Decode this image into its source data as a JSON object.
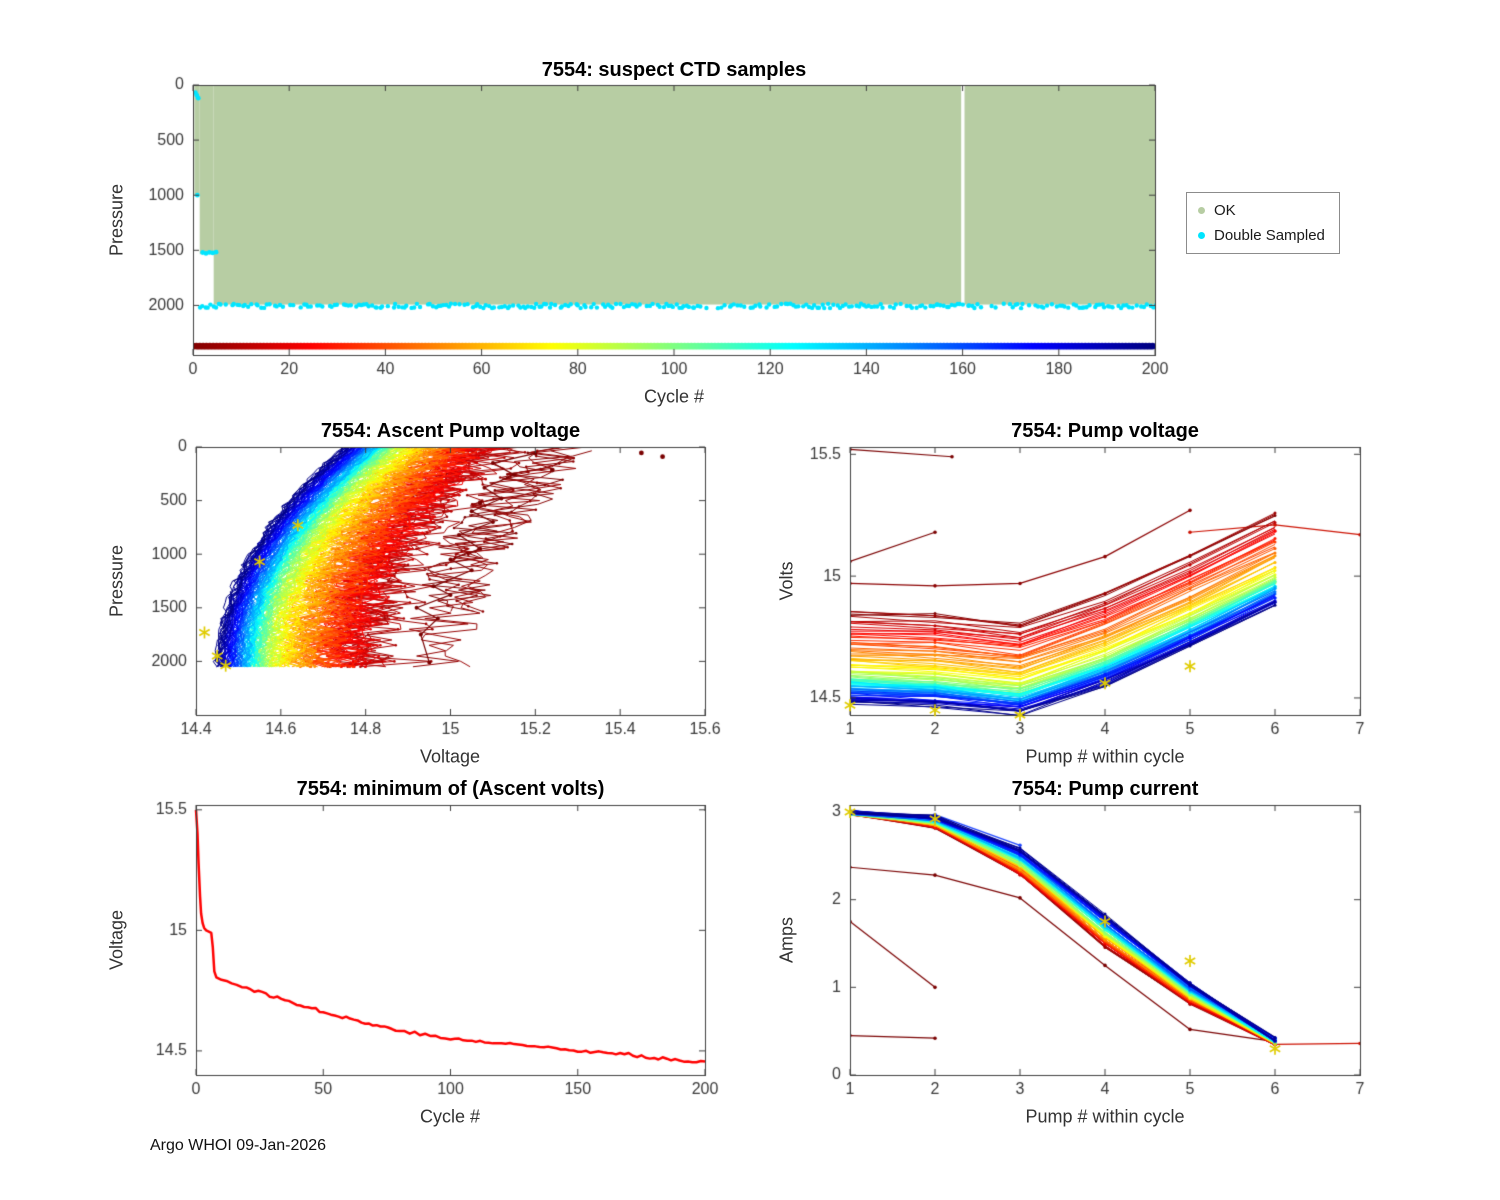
{
  "figure": {
    "footer": "Argo WHOI 09-Jan-2026",
    "background": "#ffffff"
  },
  "legend": {
    "items": [
      {
        "label": "OK",
        "color": "#b7cda3"
      },
      {
        "label": "Double Sampled",
        "color": "#00e5ff"
      }
    ]
  },
  "chart_data": [
    {
      "id": "suspect-ctd-samples",
      "type": "scatter",
      "title": "7554: suspect CTD samples",
      "xlabel": "Cycle #",
      "ylabel": "Pressure",
      "xlim": [
        0,
        200
      ],
      "ylim": [
        0,
        2450
      ],
      "y_reversed": true,
      "xticks": [
        0,
        20,
        40,
        60,
        80,
        100,
        120,
        140,
        160,
        180,
        200
      ],
      "yticks": [
        0,
        500,
        1000,
        1500,
        2000
      ],
      "legend_position": "outside-right",
      "ok_color": "#b7cda3",
      "double_sampled_color": "#00e5ff",
      "ok_columns": [
        {
          "cycle_start": 0.3,
          "cycle_end": 1.4,
          "pressure_max": 1005
        },
        {
          "cycle_start": 1.4,
          "cycle_end": 4.3,
          "pressure_max": 1535
        },
        {
          "cycle_start": 4.3,
          "cycle_end": 200.5,
          "pressure_max": 1992
        }
      ],
      "missing_cycle_gap": [
        159.7,
        160.4
      ],
      "double_sampled_band": {
        "pressure_center": 2005,
        "pressure_jitter": 20,
        "cycle_start": 1.5,
        "cycle_end": 200.5,
        "density": 0.78
      },
      "double_sampled_points": [
        [
          0.5,
          70
        ],
        [
          0.8,
          95
        ],
        [
          1.1,
          120
        ],
        [
          0.9,
          1000
        ],
        [
          2.0,
          1520
        ],
        [
          2.7,
          1528
        ],
        [
          3.4,
          1519
        ],
        [
          4.1,
          1524
        ],
        [
          4.8,
          1517
        ]
      ],
      "cycle_color_row": {
        "pressure": 2370,
        "colormap": "jet-reversed-by-cycle",
        "cycle_start": 0,
        "cycle_end": 200
      }
    },
    {
      "id": "ascent-pump-voltage",
      "type": "line",
      "title": "7554: Ascent Pump voltage",
      "xlabel": "Voltage",
      "ylabel": "Pressure",
      "xlim": [
        14.4,
        15.6
      ],
      "ylim": [
        0,
        2500
      ],
      "y_reversed": true,
      "xticks": [
        14.4,
        14.6,
        14.8,
        15,
        15.2,
        15.4,
        15.6
      ],
      "yticks": [
        0,
        500,
        1000,
        1500,
        2000
      ],
      "colormap": "jet-reversed-by-cycle-1-to-200",
      "profile_model": {
        "cycle_step": 1,
        "bottom_voltage_source": "min-ascent-volts-series",
        "bottom_voltage_cap": 14.97,
        "surface_offset": 0.3,
        "max_pressure": 2050,
        "shape_exponent": 2,
        "noise_early": 0.1,
        "noise_late": 0.012
      },
      "outlier_profile": [
        [
          15.2,
          60
        ],
        [
          15.1,
          150
        ],
        [
          15.15,
          260
        ],
        [
          15.08,
          380
        ],
        [
          15.12,
          480
        ],
        [
          15.05,
          600
        ],
        [
          15.1,
          700
        ],
        [
          15.02,
          820
        ],
        [
          15.07,
          950
        ],
        [
          15.0,
          1050
        ],
        [
          15.05,
          1150
        ],
        [
          14.96,
          1300
        ],
        [
          15.0,
          1380
        ],
        [
          14.92,
          1500
        ],
        [
          14.97,
          1600
        ],
        [
          14.93,
          1750
        ],
        [
          14.95,
          2010
        ]
      ],
      "outlier_points": [
        [
          15.5,
          90
        ],
        [
          15.45,
          55
        ],
        [
          15.24,
          215
        ],
        [
          15.07,
          520
        ]
      ],
      "star_markers": [
        [
          14.42,
          1730
        ],
        [
          14.45,
          1950
        ],
        [
          14.47,
          2040
        ],
        [
          14.55,
          1070
        ],
        [
          14.64,
          730
        ]
      ]
    },
    {
      "id": "pump-voltage",
      "type": "line",
      "title": "7554: Pump voltage",
      "xlabel": "Pump # within cycle",
      "ylabel": "Volts",
      "xlim": [
        1,
        7
      ],
      "ylim": [
        14.43,
        15.53
      ],
      "xticks": [
        1,
        2,
        3,
        4,
        5,
        6,
        7
      ],
      "yticks": [
        14.5,
        15,
        15.5
      ],
      "series_model": {
        "cycle_step": 2,
        "bottom_voltage_source": "min-ascent-volts-series",
        "bottom_voltage_cap": 14.82,
        "pump_offsets": [
          0.03,
          0.015,
          -0.02,
          0.1,
          0.26,
          0.43
        ],
        "noise": 0.012
      },
      "outlier_series": [
        {
          "color": "#7a0000",
          "points": [
            [
              1,
              15.52
            ],
            [
              2.2,
              15.49
            ]
          ]
        },
        {
          "color": "#7a0000",
          "points": [
            [
              1,
              15.06
            ],
            [
              2,
              15.18
            ]
          ]
        },
        {
          "color": "#8b0000",
          "points": [
            [
              1,
              14.97
            ],
            [
              2,
              14.96
            ],
            [
              3,
              14.97
            ],
            [
              4,
              15.08
            ],
            [
              5,
              15.27
            ]
          ]
        },
        {
          "color": "#cc1100",
          "points": [
            [
              5,
              15.18
            ],
            [
              6,
              15.21
            ],
            [
              7,
              15.17
            ]
          ]
        }
      ],
      "star_markers": [
        [
          1,
          14.47
        ],
        [
          2,
          14.45
        ],
        [
          3,
          14.43
        ],
        [
          4,
          14.56
        ],
        [
          5,
          14.63
        ]
      ]
    },
    {
      "id": "min-ascent-volts",
      "type": "line",
      "title": "7554: minimum of (Ascent volts)",
      "xlabel": "Cycle #",
      "ylabel": "Voltage",
      "xlim": [
        0,
        200
      ],
      "ylim": [
        14.4,
        15.52
      ],
      "xticks": [
        0,
        50,
        100,
        150,
        200
      ],
      "yticks": [
        14.5,
        15,
        15.5
      ],
      "line_color": "#ff0000",
      "line_width": 2.5,
      "series": [
        [
          0,
          15.5
        ],
        [
          0.6,
          15.4
        ],
        [
          1,
          15.28
        ],
        [
          1.6,
          15.14
        ],
        [
          2,
          15.07
        ],
        [
          2.6,
          15.03
        ],
        [
          3.2,
          15.01
        ],
        [
          4,
          15.0
        ],
        [
          5,
          14.995
        ],
        [
          6,
          14.99
        ],
        [
          6.6,
          14.93
        ],
        [
          7.2,
          14.83
        ],
        [
          8,
          14.805
        ],
        [
          9,
          14.8
        ],
        [
          10,
          14.795
        ],
        [
          12,
          14.79
        ],
        [
          14,
          14.78
        ],
        [
          16,
          14.775
        ],
        [
          18,
          14.77
        ],
        [
          20,
          14.76
        ],
        [
          23,
          14.75
        ],
        [
          26,
          14.74
        ],
        [
          29,
          14.73
        ],
        [
          32,
          14.72
        ],
        [
          35,
          14.71
        ],
        [
          38,
          14.7
        ],
        [
          41,
          14.693
        ],
        [
          44,
          14.682
        ],
        [
          47,
          14.672
        ],
        [
          50,
          14.663
        ],
        [
          53,
          14.655
        ],
        [
          56,
          14.646
        ],
        [
          59,
          14.638
        ],
        [
          62,
          14.63
        ],
        [
          65,
          14.62
        ],
        [
          68,
          14.612
        ],
        [
          71,
          14.604
        ],
        [
          74,
          14.6
        ],
        [
          77,
          14.592
        ],
        [
          80,
          14.585
        ],
        [
          84,
          14.578
        ],
        [
          88,
          14.57
        ],
        [
          92,
          14.562
        ],
        [
          96,
          14.556
        ],
        [
          100,
          14.55
        ],
        [
          105,
          14.545
        ],
        [
          110,
          14.54
        ],
        [
          115,
          14.535
        ],
        [
          120,
          14.53
        ],
        [
          125,
          14.528
        ],
        [
          130,
          14.522
        ],
        [
          135,
          14.515
        ],
        [
          140,
          14.52
        ],
        [
          145,
          14.508
        ],
        [
          150,
          14.5
        ],
        [
          155,
          14.498
        ],
        [
          160,
          14.492
        ],
        [
          165,
          14.488
        ],
        [
          170,
          14.485
        ],
        [
          175,
          14.478
        ],
        [
          180,
          14.472
        ],
        [
          185,
          14.468
        ],
        [
          190,
          14.462
        ],
        [
          195,
          14.458
        ],
        [
          200,
          14.452
        ]
      ]
    },
    {
      "id": "pump-current",
      "type": "line",
      "title": "7554: Pump current",
      "xlabel": "Pump # within cycle",
      "ylabel": "Amps",
      "xlim": [
        1,
        7
      ],
      "ylim": [
        0,
        3.08
      ],
      "xticks": [
        1,
        2,
        3,
        4,
        5,
        6,
        7
      ],
      "yticks": [
        0,
        1,
        2,
        3
      ],
      "series_model": {
        "cycle_step": 2,
        "pump_base": [
          2.98,
          2.87,
          2.4,
          1.62,
          0.9,
          0.38
        ],
        "late_adjust": [
          0.02,
          0.08,
          0.18,
          0.2,
          0.15,
          0.03
        ],
        "early_adjust": [
          0.0,
          0.04,
          0.12,
          0.15,
          0.08,
          0.02
        ],
        "noise": 0.025
      },
      "outlier_series": [
        {
          "color": "#7a0000",
          "points": [
            [
              1,
              2.37
            ],
            [
              2,
              2.28
            ],
            [
              3,
              2.02
            ],
            [
              4,
              1.25
            ],
            [
              5,
              0.52
            ],
            [
              6,
              0.38
            ]
          ]
        },
        {
          "color": "#7a0000",
          "points": [
            [
              1,
              1.75
            ],
            [
              2,
              1.0
            ]
          ]
        },
        {
          "color": "#7a0000",
          "points": [
            [
              1,
              0.45
            ],
            [
              2,
              0.42
            ]
          ]
        },
        {
          "color": "#cc1100",
          "points": [
            [
              6,
              0.35
            ],
            [
              7,
              0.36
            ]
          ]
        },
        {
          "color": "#1f46ff",
          "points": [
            [
              2,
              2.97
            ],
            [
              3,
              2.62
            ]
          ]
        }
      ],
      "star_markers": [
        [
          1,
          3.0
        ],
        [
          2,
          2.92
        ],
        [
          4,
          1.75
        ],
        [
          5,
          1.3
        ],
        [
          6,
          0.3
        ]
      ]
    }
  ]
}
